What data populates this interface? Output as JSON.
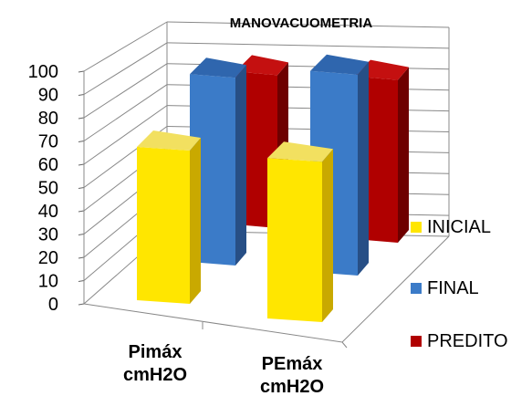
{
  "chart_data": {
    "type": "bar",
    "title": "MANOVACUOMETRIA",
    "categories": [
      [
        "Pimáx",
        "cmH2O"
      ],
      [
        "PEmáx",
        "cmH2O"
      ]
    ],
    "series": [
      {
        "name": "INICIAL",
        "values": [
          65,
          68
        ],
        "color": "#ffe600",
        "side": "#c9a900",
        "top": "#f2e060"
      },
      {
        "name": "FINAL",
        "values": [
          86,
          92
        ],
        "color": "#3b7bc8",
        "side": "#274f86",
        "top": "#2f66ae"
      },
      {
        "name": "PREDITO",
        "values": [
          77,
          82
        ],
        "color": "#b00000",
        "side": "#6e0000",
        "top": "#c41010"
      }
    ],
    "ylim": [
      0,
      100
    ],
    "yticks": [
      0,
      10,
      20,
      30,
      40,
      50,
      60,
      70,
      80,
      90,
      100
    ],
    "grid": true,
    "legend_position": "right",
    "view": "3d-clustered-depth"
  }
}
